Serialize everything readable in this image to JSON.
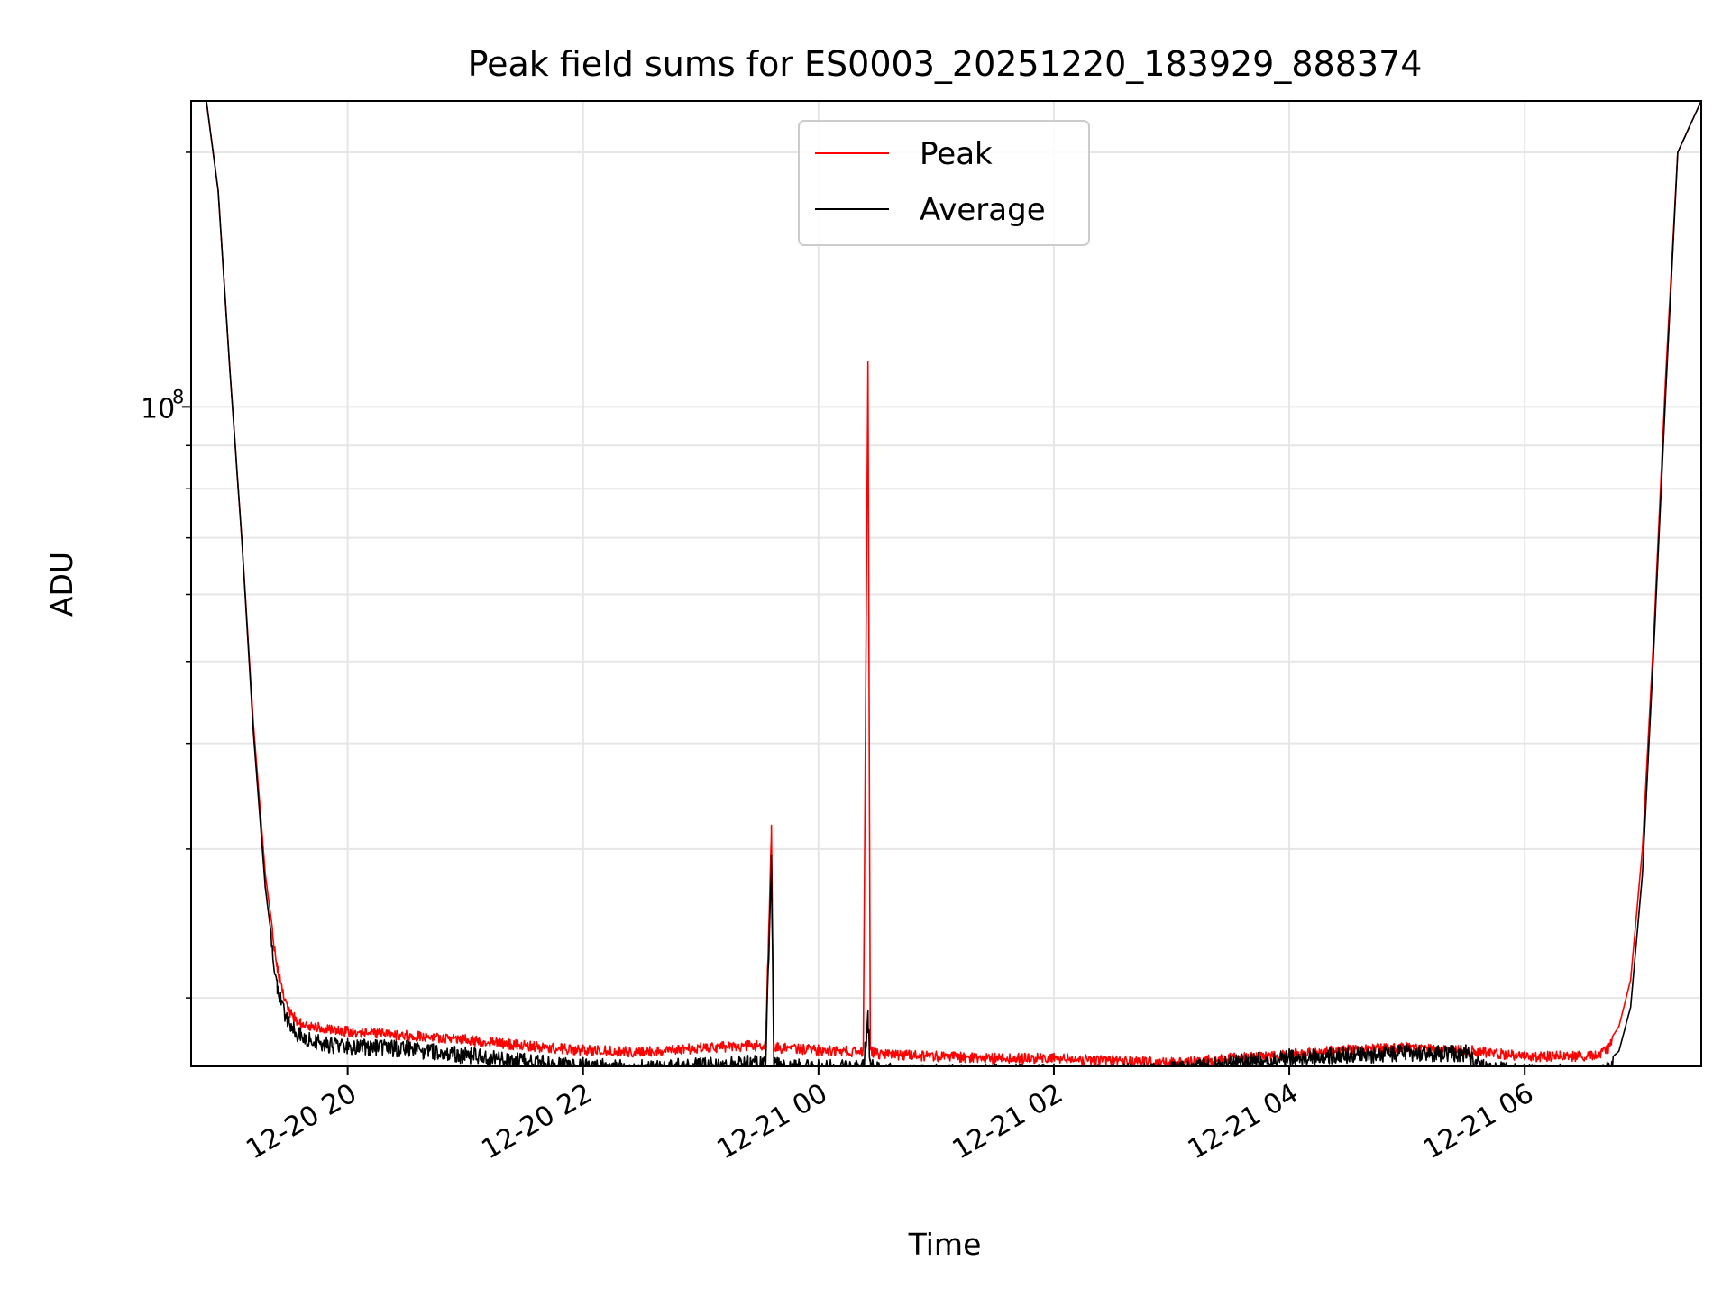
{
  "chart_data": {
    "type": "line",
    "title": "Peak field sums for ES0003_20251220_183929_888374",
    "xlabel": "Time",
    "ylabel": "ADU",
    "yscale": "log",
    "ylim": [
      16600000,
      230000000
    ],
    "xlim_hours": [
      18.67,
      31.5
    ],
    "x_ticks": [
      {
        "label": "12-20 20",
        "hour": 20
      },
      {
        "label": "12-20 22",
        "hour": 22
      },
      {
        "label": "12-21 00",
        "hour": 24
      },
      {
        "label": "12-21 02",
        "hour": 26
      },
      {
        "label": "12-21 04",
        "hour": 28
      },
      {
        "label": "12-21 06",
        "hour": 30
      }
    ],
    "y_major_ticks": [
      {
        "value": 100000000,
        "base": "10",
        "exp": "8"
      }
    ],
    "y_minor_ticks": [
      20000000,
      30000000,
      40000000,
      50000000,
      60000000,
      70000000,
      80000000,
      90000000,
      200000000
    ],
    "grid": true,
    "legend": {
      "location": "upper center",
      "entries": [
        {
          "name": "Peak",
          "color": "#ff0000"
        },
        {
          "name": "Average",
          "color": "#000000"
        }
      ]
    },
    "series": [
      {
        "name": "Peak",
        "color": "#ff0000",
        "hours": [
          18.67,
          18.8,
          18.9,
          19.0,
          19.1,
          19.2,
          19.3,
          19.4,
          19.5,
          19.6,
          19.75,
          20.0,
          20.5,
          21.0,
          21.5,
          22.0,
          22.5,
          23.0,
          23.4,
          23.55,
          23.6,
          23.62,
          23.65,
          24.0,
          24.38,
          24.42,
          24.44,
          24.46,
          24.5,
          25.0,
          25.5,
          26.0,
          26.5,
          27.0,
          27.5,
          28.0,
          28.5,
          29.0,
          29.5,
          29.65,
          29.8,
          30.0,
          30.3,
          30.6,
          30.7,
          30.8,
          30.9,
          31.0,
          31.1,
          31.2,
          31.3,
          31.5
        ],
        "values": [
          230000000,
          230000000,
          180000000,
          110000000,
          70000000,
          42000000,
          28000000,
          22000000,
          19500000,
          18900000,
          18700000,
          18500000,
          18300000,
          18100000,
          17800000,
          17600000,
          17500000,
          17700000,
          17800000,
          17800000,
          32000000,
          17900000,
          17700000,
          17600000,
          17500000,
          113000000,
          17500000,
          17500000,
          17400000,
          17300000,
          17200000,
          17200000,
          17100000,
          17000000,
          17200000,
          17400000,
          17600000,
          17700000,
          17600000,
          17500000,
          17400000,
          17300000,
          17300000,
          17300000,
          17600000,
          18500000,
          21000000,
          30000000,
          55000000,
          110000000,
          200000000,
          230000000
        ]
      },
      {
        "name": "Average",
        "color": "#000000",
        "hours": [
          18.67,
          18.8,
          18.9,
          19.0,
          19.1,
          19.2,
          19.3,
          19.4,
          19.5,
          19.6,
          19.75,
          20.0,
          20.5,
          21.0,
          21.5,
          22.0,
          22.5,
          23.0,
          23.4,
          23.55,
          23.6,
          23.62,
          23.65,
          24.0,
          24.38,
          24.42,
          24.44,
          24.46,
          24.5,
          25.0,
          25.5,
          26.0,
          26.5,
          27.0,
          27.5,
          28.0,
          28.5,
          29.0,
          29.5,
          29.65,
          29.8,
          30.0,
          30.3,
          30.6,
          30.7,
          30.8,
          30.9,
          31.0,
          31.1,
          31.2,
          31.3,
          31.5
        ],
        "values": [
          230000000,
          230000000,
          180000000,
          110000000,
          70000000,
          41000000,
          27000000,
          21000000,
          19000000,
          18400000,
          18100000,
          17900000,
          17800000,
          17500000,
          17200000,
          17000000,
          16900000,
          17000000,
          17100000,
          17100000,
          29500000,
          17100000,
          17000000,
          16900000,
          16900000,
          19300000,
          16900000,
          16900000,
          16800000,
          16700000,
          16700000,
          16700000,
          16700000,
          16800000,
          17100000,
          17400000,
          17500000,
          17600000,
          17600000,
          16900000,
          16800000,
          16700000,
          16700000,
          16650000,
          16800000,
          17300000,
          19500000,
          28000000,
          53000000,
          105000000,
          200000000,
          230000000
        ]
      }
    ]
  }
}
